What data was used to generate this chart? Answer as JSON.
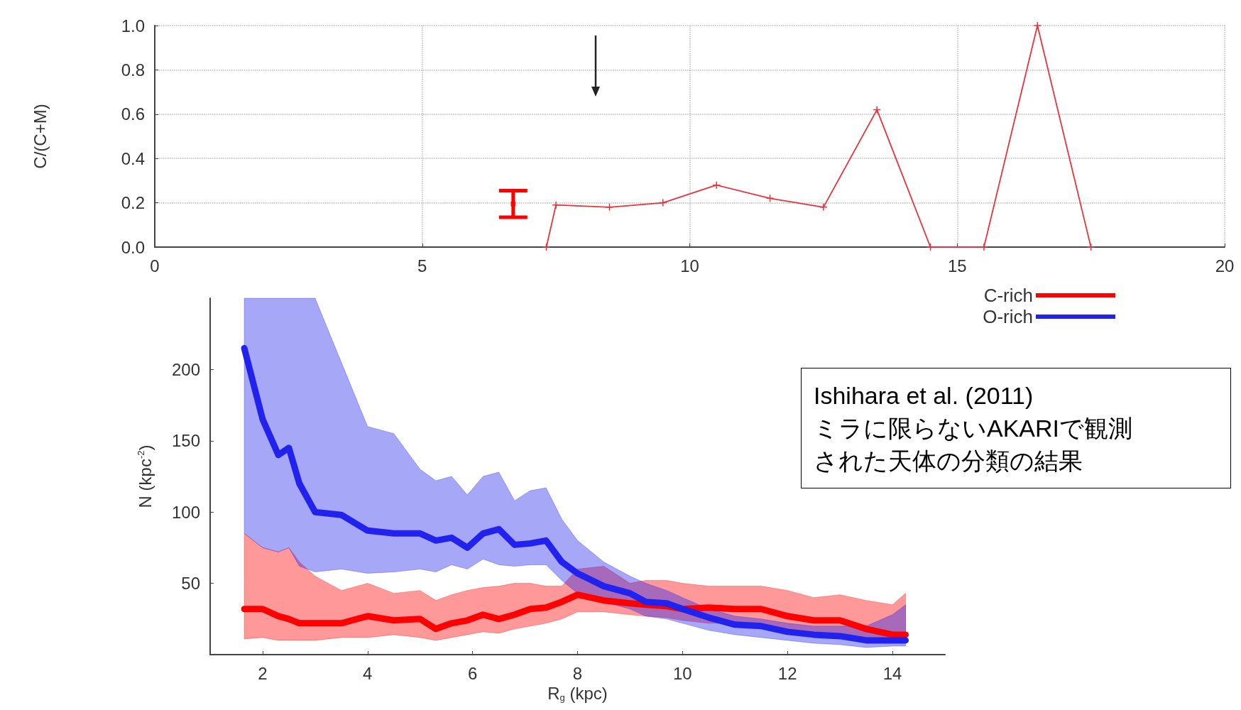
{
  "chart_data": [
    {
      "type": "line",
      "ylabel": "C/(C+M)",
      "xlim": [
        0,
        20
      ],
      "xticks": [
        0,
        5,
        10,
        15,
        20
      ],
      "ylim": [
        0,
        1
      ],
      "yticks": [
        {
          "value": 0,
          "label": "0.0"
        },
        {
          "value": 0.2,
          "label": "0.2"
        },
        {
          "value": 0.4,
          "label": "0.4"
        },
        {
          "value": 0.6,
          "label": "0.6"
        },
        {
          "value": 0.8,
          "label": "0.8"
        },
        {
          "value": 1,
          "label": "1.0"
        }
      ],
      "grid": true,
      "legend": false,
      "marker": "cross",
      "line_style": "solid",
      "series": [
        {
          "color": "#e8323c",
          "x": [
            7.32,
            7.5,
            8.5,
            9.5,
            10.5,
            11.5,
            12.5,
            13.5,
            14.5,
            15.5,
            16.5,
            17.5
          ],
          "values": [
            0,
            0.19,
            0.18,
            0.2,
            0.28,
            0.22,
            0.18,
            0.62,
            0,
            0,
            1.0,
            0
          ]
        },
        {
          "type": "scatter",
          "marker": "square",
          "color": "#ff0000",
          "x": [
            6.7
          ],
          "values": [
            0.195
          ],
          "errors": [
            [
              0.135,
              0.255
            ]
          ]
        }
      ]
    },
    {
      "type": "line",
      "xlabel": "R$_{g}$ (kpc)",
      "ylabel": "N (kpc$^{-2}$)",
      "xlim": [
        1,
        15
      ],
      "xticks": [
        2,
        4,
        6,
        8,
        10,
        12,
        14
      ],
      "ylim": [
        0,
        250
      ],
      "yticks": [
        50,
        100,
        150,
        200
      ],
      "grid": false,
      "legend": "top right",
      "line_style": "solid",
      "marker": "none",
      "annotations": [
        "Ishihara et al. (2011)",
        "ミラに限らないAKARIで観測された天体の分類の結果"
      ],
      "x": [
        1.65,
        2.0,
        2.3,
        2.5,
        2.7,
        3.0,
        3.5,
        4.0,
        4.5,
        5.0,
        5.3,
        5.6,
        5.9,
        6.2,
        6.5,
        6.8,
        7.1,
        7.4,
        7.7,
        8.0,
        8.5,
        9.0,
        9.3,
        9.7,
        10.0,
        10.5,
        11.0,
        11.5,
        12.0,
        12.5,
        13.0,
        13.5,
        14.0,
        14.25
      ],
      "series": [
        {
          "name": "C-rich",
          "color": "#ff0000",
          "values": [
            32,
            32,
            27,
            25,
            22,
            22,
            22,
            27,
            24,
            25,
            18,
            22,
            24,
            28,
            25,
            28,
            32,
            33,
            37,
            42,
            38,
            36,
            35,
            34,
            32,
            33,
            32,
            32,
            27,
            24,
            24,
            18,
            14,
            14
          ],
          "upper": [
            85,
            75,
            72,
            75,
            65,
            55,
            45,
            50,
            43,
            45,
            38,
            42,
            45,
            47,
            48,
            50,
            50,
            48,
            48,
            60,
            62,
            50,
            52,
            52,
            50,
            48,
            48,
            48,
            45,
            40,
            42,
            38,
            35,
            43
          ],
          "lower": [
            11,
            12,
            10,
            10,
            10,
            10,
            12,
            12,
            14,
            12,
            10,
            12,
            14,
            16,
            15,
            18,
            20,
            22,
            25,
            30,
            30,
            28,
            27,
            26,
            24,
            22,
            22,
            20,
            17,
            15,
            14,
            12,
            10,
            10
          ]
        },
        {
          "name": "O-rich",
          "color": "#2222ee",
          "values": [
            215,
            165,
            140,
            145,
            120,
            100,
            98,
            87,
            85,
            85,
            80,
            82,
            75,
            85,
            88,
            77,
            78,
            80,
            65,
            57,
            48,
            43,
            37,
            36,
            32,
            26,
            21,
            20,
            16,
            14,
            13,
            10,
            10,
            10
          ],
          "upper": [
            250,
            250,
            250,
            250,
            250,
            250,
            205,
            160,
            155,
            130,
            122,
            125,
            112,
            125,
            128,
            108,
            115,
            117,
            95,
            80,
            65,
            55,
            50,
            45,
            40,
            32,
            27,
            25,
            22,
            20,
            20,
            20,
            28,
            35
          ],
          "lower": [
            85,
            75,
            72,
            75,
            62,
            58,
            60,
            57,
            58,
            60,
            58,
            63,
            60,
            67,
            63,
            62,
            63,
            63,
            52,
            43,
            37,
            32,
            27,
            25,
            22,
            17,
            14,
            12,
            10,
            8,
            7,
            5,
            6,
            6
          ]
        }
      ]
    }
  ]
}
